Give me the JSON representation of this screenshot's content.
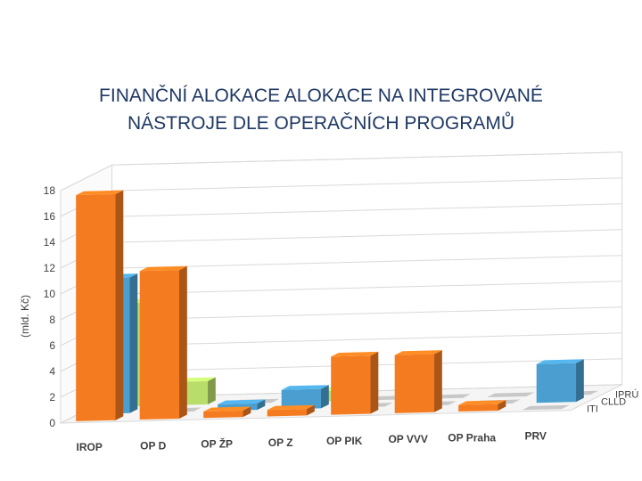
{
  "title_line1": "FINANČNÍ ALOKACE ALOKACE NA INTEGROVANÉ",
  "title_line2": "NÁSTROJE DLE OPERAČNÍCH PROGRAMŮ",
  "chart_data": {
    "type": "bar",
    "title": "FINANČNÍ ALOKACE ALOKACE NA INTEGROVANÉ NÁSTROJE DLE OPERAČNÍCH PROGRAMŮ",
    "ylabel": "(mld. Kč)",
    "xlabel": "",
    "ylim": [
      0,
      18
    ],
    "yticks": [
      0,
      2,
      4,
      6,
      8,
      10,
      12,
      14,
      16,
      18
    ],
    "categories": [
      "IROP",
      "OP D",
      "OP ŽP",
      "OP Z",
      "OP PIK",
      "OP VVV",
      "OP Praha",
      "PRV"
    ],
    "series": [
      {
        "name": "ITI",
        "color": "#f47b20",
        "values": [
          17.5,
          11.5,
          0.5,
          0.5,
          4.5,
          4.5,
          0.5,
          0
        ]
      },
      {
        "name": "CLLD",
        "color": "#4a9fd0",
        "values": [
          10.5,
          0,
          0.5,
          1.5,
          0,
          0,
          0,
          3.0
        ]
      },
      {
        "name": "IPRÚ",
        "color": "#b9dd6a",
        "values": [
          8.0,
          1.8,
          0,
          0.8,
          0,
          0,
          0,
          0
        ]
      }
    ]
  }
}
